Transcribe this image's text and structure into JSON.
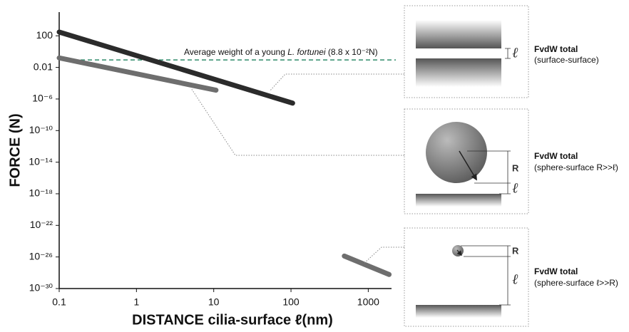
{
  "chart_data": {
    "type": "line",
    "y_label": "FORCE (N)",
    "x_label": "DISTANCE cilia-surface ℓ(nm)",
    "log_x": true,
    "log_y": true,
    "xlim": [
      0.1,
      2000
    ],
    "xticks": [
      0.1,
      1,
      10,
      100,
      1000
    ],
    "ylim": [
      1e-30,
      100000
    ],
    "yticks": [
      {
        "value": 1e-30,
        "label": "10⁻³⁰"
      },
      {
        "value": 1e-26,
        "label": "10⁻²⁶"
      },
      {
        "value": 1e-22,
        "label": "10⁻²²"
      },
      {
        "value": 1e-18,
        "label": "10⁻¹⁸"
      },
      {
        "value": 1e-14,
        "label": "10⁻¹⁴"
      },
      {
        "value": 1e-10,
        "label": "10⁻¹⁰"
      },
      {
        "value": 1e-06,
        "label": "10⁻⁶"
      },
      0.01,
      100
    ],
    "series": [
      {
        "color": "#2b2b2b",
        "x": [
          0.1,
          105
        ],
        "values": [
          300,
          3e-07
        ]
      },
      {
        "color": "#6e6e6e",
        "x": [
          0.1,
          10.7
        ],
        "values": [
          0.16,
          1.3e-05
        ]
      },
      {
        "color": "#6e6e6e",
        "x": [
          490,
          1860
        ],
        "values": [
          1.3e-26,
          6e-29
        ]
      }
    ],
    "reference_line": {
      "value": 0.088,
      "color": "#2e8b6a",
      "label_parts": [
        "Average weight of a young ",
        "L. fortunei",
        " (8.8 x 10⁻²N)"
      ]
    }
  },
  "diagrams": [
    {
      "title": "FvdW total",
      "subtitle": "(surface-surface)",
      "symbols": [
        "ℓ"
      ]
    },
    {
      "title": "FvdW total",
      "subtitle": "(sphere-surface R>>ℓ)",
      "symbols": [
        "R",
        "ℓ"
      ]
    },
    {
      "title": "FvdW total",
      "subtitle": "(sphere-surface ℓ>>R)",
      "symbols": [
        "R",
        "ℓ"
      ]
    }
  ]
}
